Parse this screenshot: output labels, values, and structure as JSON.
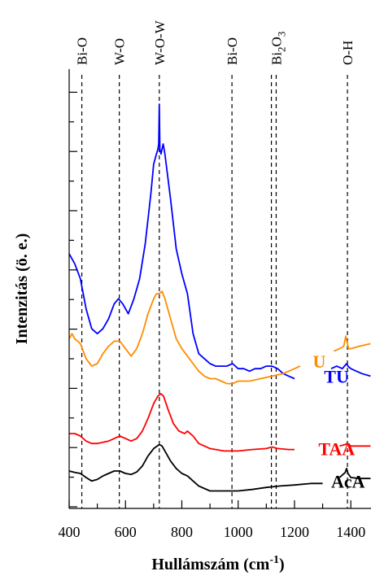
{
  "chart_data": {
    "type": "line",
    "xlabel": "Hullámszám (cm",
    "xlabel_sup": "-1",
    "xlabel_close": ")",
    "ylabel": "Intenzitás (ö. e.)",
    "xlim": [
      400,
      1470
    ],
    "xticks": [
      400,
      600,
      800,
      1000,
      1200,
      1400
    ],
    "xtick_labels": [
      "400",
      "600",
      "800",
      "1000",
      "1200",
      "1400"
    ],
    "y_ticks_unlabeled": true,
    "grid": false,
    "annotations": [
      {
        "label": "Bi-O",
        "x": 445
      },
      {
        "label": "W-O",
        "x": 578
      },
      {
        "label": "W-O-W",
        "x": 720
      },
      {
        "label": "Bi-O",
        "x": 978
      },
      {
        "label": "",
        "x": 1118
      },
      {
        "label": "Bi2O3",
        "x": 1135
      },
      {
        "label": "O-H",
        "x": 1388
      }
    ],
    "bi2o3_label": {
      "base": "Bi",
      "sub1": "2",
      "mid": "O",
      "sub2": "3"
    },
    "series": [
      {
        "name": "TU",
        "color": "#0000ff",
        "points": [
          [
            400,
            46
          ],
          [
            420,
            44
          ],
          [
            440,
            41
          ],
          [
            460,
            35
          ],
          [
            480,
            31
          ],
          [
            500,
            30
          ],
          [
            520,
            31
          ],
          [
            540,
            33
          ],
          [
            560,
            36
          ],
          [
            575,
            37
          ],
          [
            590,
            36
          ],
          [
            610,
            34
          ],
          [
            630,
            37
          ],
          [
            650,
            41
          ],
          [
            670,
            48
          ],
          [
            690,
            58
          ],
          [
            700,
            64
          ],
          [
            710,
            66
          ],
          [
            715,
            67
          ],
          [
            718,
            68
          ],
          [
            720,
            76
          ],
          [
            722,
            67
          ],
          [
            726,
            66
          ],
          [
            730,
            67
          ],
          [
            734,
            68
          ],
          [
            740,
            66
          ],
          [
            760,
            57
          ],
          [
            780,
            47
          ],
          [
            800,
            42
          ],
          [
            820,
            38
          ],
          [
            840,
            30
          ],
          [
            860,
            26
          ],
          [
            880,
            25
          ],
          [
            900,
            24
          ],
          [
            920,
            23.5
          ],
          [
            940,
            23.5
          ],
          [
            960,
            23.5
          ],
          [
            980,
            24
          ],
          [
            1000,
            23
          ],
          [
            1020,
            23
          ],
          [
            1040,
            22.5
          ],
          [
            1060,
            23
          ],
          [
            1080,
            23
          ],
          [
            1100,
            23.5
          ],
          [
            1120,
            23.5
          ],
          [
            1140,
            23
          ],
          [
            1160,
            22
          ],
          [
            1180,
            21.5
          ],
          [
            1200,
            21
          ]
        ],
        "points2": [
          [
            1330,
            23
          ],
          [
            1350,
            23.5
          ],
          [
            1370,
            23
          ],
          [
            1385,
            24
          ],
          [
            1390,
            23.5
          ],
          [
            1400,
            23
          ],
          [
            1420,
            22.5
          ],
          [
            1440,
            22
          ],
          [
            1470,
            21.5
          ]
        ]
      },
      {
        "name": "U",
        "color": "#ff8c00",
        "points": [
          [
            400,
            29
          ],
          [
            410,
            30
          ],
          [
            420,
            29
          ],
          [
            440,
            28
          ],
          [
            460,
            25
          ],
          [
            480,
            23.5
          ],
          [
            500,
            24
          ],
          [
            520,
            26
          ],
          [
            540,
            27.5
          ],
          [
            560,
            28.5
          ],
          [
            580,
            28.5
          ],
          [
            600,
            27
          ],
          [
            620,
            25.5
          ],
          [
            640,
            27
          ],
          [
            660,
            30
          ],
          [
            680,
            34
          ],
          [
            700,
            37
          ],
          [
            710,
            38
          ],
          [
            720,
            38
          ],
          [
            730,
            38.5
          ],
          [
            740,
            37
          ],
          [
            760,
            33
          ],
          [
            780,
            29
          ],
          [
            800,
            27
          ],
          [
            820,
            25.5
          ],
          [
            840,
            24
          ],
          [
            860,
            22.5
          ],
          [
            880,
            21.5
          ],
          [
            900,
            21
          ],
          [
            920,
            21
          ],
          [
            940,
            20.5
          ],
          [
            960,
            20
          ],
          [
            980,
            20
          ],
          [
            1000,
            20.5
          ],
          [
            1040,
            20.5
          ],
          [
            1080,
            21
          ],
          [
            1120,
            21.5
          ],
          [
            1160,
            22
          ],
          [
            1200,
            23
          ],
          [
            1220,
            23.5
          ]
        ],
        "points2": [
          [
            1340,
            26.5
          ],
          [
            1360,
            27
          ],
          [
            1375,
            27.5
          ],
          [
            1382,
            29.5
          ],
          [
            1386,
            28.5
          ],
          [
            1392,
            27
          ],
          [
            1400,
            27
          ],
          [
            1430,
            27.5
          ],
          [
            1470,
            28
          ]
        ]
      },
      {
        "name": "TAA",
        "color": "#ff0000",
        "points": [
          [
            400,
            10
          ],
          [
            410,
            10
          ],
          [
            420,
            10
          ],
          [
            440,
            9.5
          ],
          [
            460,
            8.5
          ],
          [
            480,
            8
          ],
          [
            500,
            8
          ],
          [
            540,
            8.5
          ],
          [
            560,
            9
          ],
          [
            580,
            9.5
          ],
          [
            600,
            9
          ],
          [
            620,
            8.5
          ],
          [
            640,
            9
          ],
          [
            660,
            10.5
          ],
          [
            680,
            13
          ],
          [
            700,
            16
          ],
          [
            715,
            17.5
          ],
          [
            725,
            18
          ],
          [
            735,
            17.5
          ],
          [
            750,
            15
          ],
          [
            770,
            12
          ],
          [
            790,
            10.5
          ],
          [
            810,
            10
          ],
          [
            820,
            10.5
          ],
          [
            840,
            9.5
          ],
          [
            860,
            8
          ],
          [
            900,
            7
          ],
          [
            950,
            6.5
          ],
          [
            1000,
            6.5
          ],
          [
            1050,
            6.8
          ],
          [
            1100,
            7
          ],
          [
            1120,
            7.3
          ],
          [
            1140,
            7
          ],
          [
            1180,
            6.8
          ],
          [
            1200,
            6.8
          ]
        ],
        "points2": [
          [
            1360,
            7.5
          ],
          [
            1380,
            7.8
          ],
          [
            1386,
            8
          ],
          [
            1392,
            7.8
          ],
          [
            1400,
            7.5
          ],
          [
            1430,
            7.5
          ],
          [
            1470,
            7.5
          ]
        ]
      },
      {
        "name": "AcA",
        "color": "#000000",
        "points": [
          [
            400,
            2.5
          ],
          [
            420,
            2.2
          ],
          [
            440,
            2
          ],
          [
            460,
            1.2
          ],
          [
            480,
            0.5
          ],
          [
            500,
            0.8
          ],
          [
            520,
            1.5
          ],
          [
            540,
            2
          ],
          [
            560,
            2.5
          ],
          [
            580,
            2.5
          ],
          [
            600,
            2
          ],
          [
            620,
            1.8
          ],
          [
            640,
            2.3
          ],
          [
            660,
            3.5
          ],
          [
            680,
            5.5
          ],
          [
            700,
            7
          ],
          [
            720,
            7.8
          ],
          [
            730,
            7.5
          ],
          [
            740,
            6.5
          ],
          [
            760,
            4.5
          ],
          [
            780,
            3
          ],
          [
            800,
            2
          ],
          [
            820,
            1.5
          ],
          [
            840,
            0.5
          ],
          [
            860,
            -0.5
          ],
          [
            880,
            -1
          ],
          [
            900,
            -1.5
          ],
          [
            950,
            -1.5
          ],
          [
            1000,
            -1.5
          ],
          [
            1050,
            -1.2
          ],
          [
            1100,
            -0.8
          ],
          [
            1150,
            -0.5
          ],
          [
            1200,
            -0.3
          ],
          [
            1260,
            0
          ],
          [
            1300,
            0
          ]
        ],
        "points2": [
          [
            1360,
            1.2
          ],
          [
            1380,
            2.2
          ],
          [
            1385,
            3
          ],
          [
            1390,
            2
          ],
          [
            1400,
            1.2
          ],
          [
            1430,
            1
          ],
          [
            1470,
            1
          ]
        ]
      }
    ],
    "series_labels": [
      {
        "name": "TU",
        "x": 1305,
        "y": 21.5
      },
      {
        "name": "U",
        "x": 1265,
        "y": 24.5
      },
      {
        "name": "TAA",
        "x": 1285,
        "y": 7
      },
      {
        "name": "AcA",
        "x": 1330,
        "y": 0.5
      }
    ]
  }
}
